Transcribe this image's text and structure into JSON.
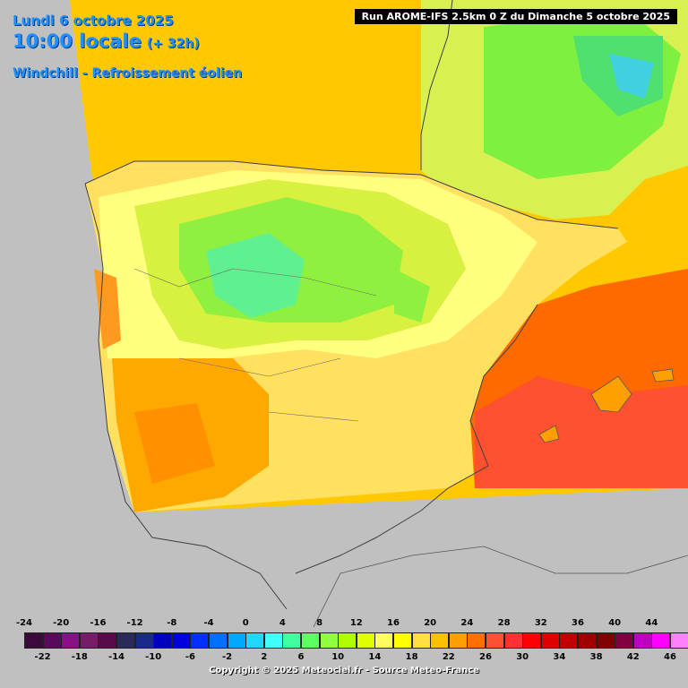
{
  "header": {
    "date": "Lundi 6 octobre 2025",
    "time": "10:00 locale",
    "offset": "(+ 32h)",
    "variable": "Windchill - Refroissement éolien"
  },
  "run": "Run AROME-IFS 2.5km 0 Z du Dimanche 5 octobre 2025",
  "legend": {
    "values": [
      -24,
      -22,
      -20,
      -18,
      -16,
      -14,
      -12,
      -10,
      -8,
      -6,
      -4,
      -2,
      0,
      2,
      4,
      6,
      8,
      10,
      12,
      14,
      16,
      18,
      20,
      22,
      24,
      26,
      28,
      30,
      32,
      34,
      36,
      38,
      40,
      42,
      44,
      46
    ],
    "colors": [
      "#3a0a3a",
      "#5a0a5a",
      "#8a108a",
      "#7a1a6a",
      "#5a0a4a",
      "#2a2a5a",
      "#1a2a8a",
      "#0000c0",
      "#0000e0",
      "#0030ff",
      "#0070ff",
      "#00a8ff",
      "#20d8ff",
      "#40ffff",
      "#40ffa0",
      "#60ff60",
      "#90ff40",
      "#b0ff00",
      "#e0ff00",
      "#ffff60",
      "#ffff00",
      "#ffe040",
      "#ffc000",
      "#ffa000",
      "#ff7000",
      "#ff5030",
      "#ff3030",
      "#ff0000",
      "#e00000",
      "#c00000",
      "#a00000",
      "#800000",
      "#800040",
      "#c000c0",
      "#ff00ff",
      "#ff80ff"
    ]
  },
  "copyright": "Copyright © 2025 Meteociel.fr - Source Meteo-France"
}
